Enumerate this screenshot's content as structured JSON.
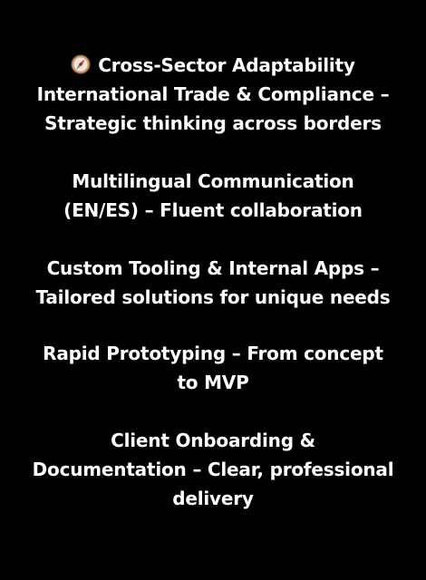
{
  "background_color": "#000000",
  "text_color": "#ffffff",
  "heading": {
    "icon": "compass-icon",
    "text": "Cross-Sector Adaptability"
  },
  "items": [
    {
      "lines": [
        "International Trade & Compliance –",
        "Strategic thinking across borders"
      ]
    },
    {
      "lines": [
        "Multilingual Communication",
        "(EN/ES) – Fluent collaboration"
      ]
    },
    {
      "lines": [
        "Custom Tooling & Internal Apps –",
        "Tailored solutions for unique needs"
      ]
    },
    {
      "lines": [
        "Rapid Prototyping – From concept",
        "to MVP"
      ]
    },
    {
      "lines": [
        "Client Onboarding &",
        "Documentation – Clear, professional",
        "delivery"
      ]
    }
  ]
}
